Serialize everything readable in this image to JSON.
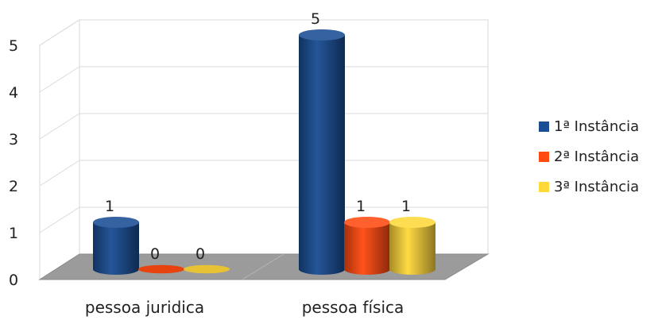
{
  "chart_data": {
    "type": "bar",
    "title": "",
    "xlabel": "",
    "ylabel": "",
    "categories": [
      "pessoa juridica",
      "pessoa física"
    ],
    "series": [
      {
        "name": "1ª Instância",
        "values": [
          1,
          5
        ],
        "color": "#1a4d94"
      },
      {
        "name": "2ª Instância",
        "values": [
          0,
          1
        ],
        "color": "#ff4a10"
      },
      {
        "name": "3ª Instância",
        "values": [
          0,
          1
        ],
        "color": "#ffd83a"
      }
    ],
    "yticks": [
      "0",
      "1",
      "2",
      "3",
      "4",
      "5"
    ],
    "ylim": [
      0,
      5
    ],
    "grid": true,
    "legend_position": "right",
    "style": "3d-cylinder"
  }
}
